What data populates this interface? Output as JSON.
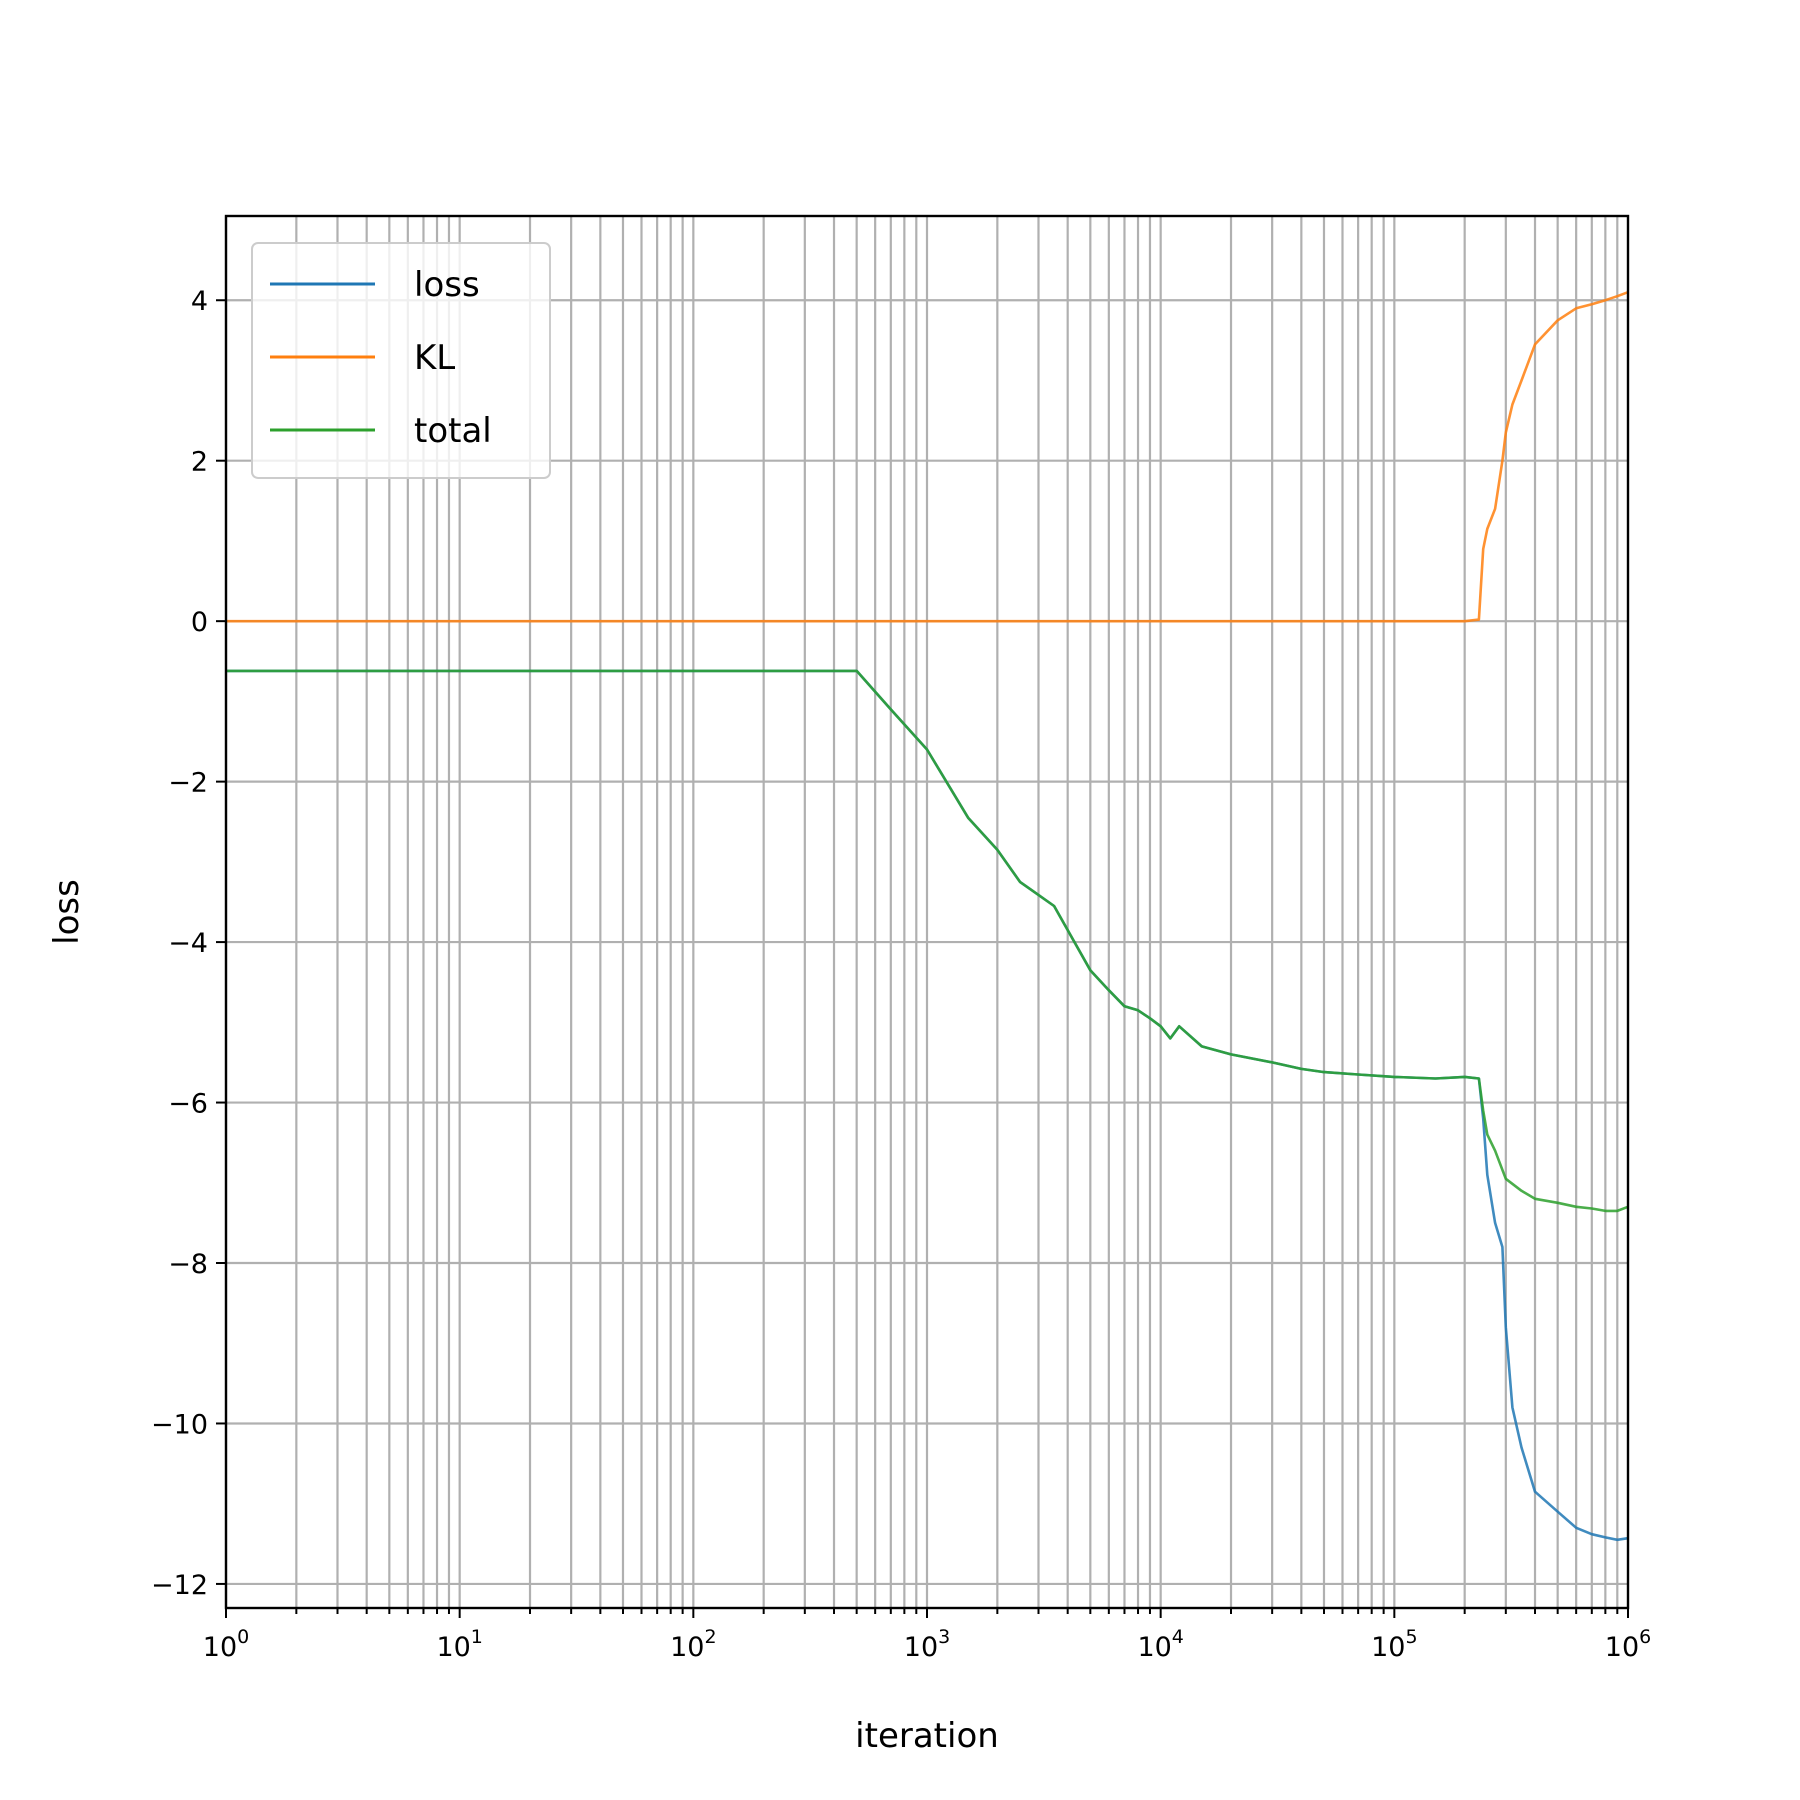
{
  "chart_data": {
    "type": "line",
    "title": "",
    "xlabel": "iteration",
    "ylabel": "loss",
    "xscale": "log",
    "xlim": [
      1,
      1000000
    ],
    "ylim": [
      -12.3,
      5.05
    ],
    "grid": true,
    "grid_which": "both",
    "legend_position": "top-left",
    "x_ticks": [
      1,
      10,
      100,
      1000,
      10000,
      100000,
      1000000
    ],
    "x_tick_labels": [
      {
        "base": "10",
        "exp": "0"
      },
      {
        "base": "10",
        "exp": "1"
      },
      {
        "base": "10",
        "exp": "2"
      },
      {
        "base": "10",
        "exp": "3"
      },
      {
        "base": "10",
        "exp": "4"
      },
      {
        "base": "10",
        "exp": "5"
      },
      {
        "base": "10",
        "exp": "6"
      }
    ],
    "y_ticks": [
      4,
      2,
      0,
      -2,
      -4,
      -6,
      -8,
      -10,
      -12
    ],
    "y_tick_labels": [
      "4",
      "2",
      "0",
      "−2",
      "−4",
      "−6",
      "−8",
      "−10",
      "−12"
    ],
    "series": [
      {
        "name": "loss",
        "color": "#1f77b4",
        "x": [
          1,
          10,
          100,
          500,
          700,
          1000,
          1500,
          2000,
          2500,
          3500,
          4000,
          5000,
          6000,
          7000,
          8000,
          9000,
          10000,
          11000,
          12000,
          15000,
          20000,
          30000,
          40000,
          50000,
          70000,
          100000,
          150000,
          200000,
          230000,
          240000,
          250000,
          270000,
          290000,
          300000,
          320000,
          350000,
          400000,
          500000,
          600000,
          700000,
          800000,
          900000,
          1000000
        ],
        "y": [
          -0.62,
          -0.62,
          -0.62,
          -0.62,
          -1.1,
          -1.6,
          -2.45,
          -2.85,
          -3.25,
          -3.55,
          -3.85,
          -4.35,
          -4.6,
          -4.8,
          -4.85,
          -4.95,
          -5.05,
          -5.2,
          -5.05,
          -5.3,
          -5.4,
          -5.5,
          -5.58,
          -5.62,
          -5.65,
          -5.68,
          -5.7,
          -5.68,
          -5.7,
          -6.2,
          -6.9,
          -7.5,
          -7.8,
          -8.8,
          -9.8,
          -10.3,
          -10.85,
          -11.1,
          -11.3,
          -11.38,
          -11.42,
          -11.45,
          -11.43
        ]
      },
      {
        "name": "KL",
        "color": "#ff7f0e",
        "x": [
          1,
          10,
          100,
          1000,
          10000,
          100000,
          200000,
          230000,
          240000,
          250000,
          270000,
          290000,
          300000,
          320000,
          350000,
          400000,
          500000,
          600000,
          700000,
          800000,
          900000,
          1000000
        ],
        "y": [
          0,
          0,
          0,
          0,
          0,
          0,
          0,
          0.02,
          0.9,
          1.15,
          1.4,
          2.0,
          2.35,
          2.7,
          3.0,
          3.45,
          3.75,
          3.9,
          3.95,
          4.0,
          4.05,
          4.1
        ]
      },
      {
        "name": "total",
        "color": "#2ca02c",
        "x": [
          1,
          10,
          100,
          500,
          700,
          1000,
          1500,
          2000,
          2500,
          3500,
          4000,
          5000,
          6000,
          7000,
          8000,
          9000,
          10000,
          11000,
          12000,
          15000,
          20000,
          30000,
          40000,
          50000,
          70000,
          100000,
          150000,
          200000,
          230000,
          240000,
          250000,
          270000,
          300000,
          350000,
          400000,
          500000,
          600000,
          700000,
          800000,
          900000,
          1000000
        ],
        "y": [
          -0.62,
          -0.62,
          -0.62,
          -0.62,
          -1.1,
          -1.6,
          -2.45,
          -2.85,
          -3.25,
          -3.55,
          -3.85,
          -4.35,
          -4.6,
          -4.8,
          -4.85,
          -4.95,
          -5.05,
          -5.2,
          -5.05,
          -5.3,
          -5.4,
          -5.5,
          -5.58,
          -5.62,
          -5.65,
          -5.68,
          -5.7,
          -5.68,
          -5.7,
          -6.1,
          -6.4,
          -6.6,
          -6.95,
          -7.1,
          -7.2,
          -7.25,
          -7.3,
          -7.32,
          -7.35,
          -7.35,
          -7.3
        ]
      }
    ]
  }
}
